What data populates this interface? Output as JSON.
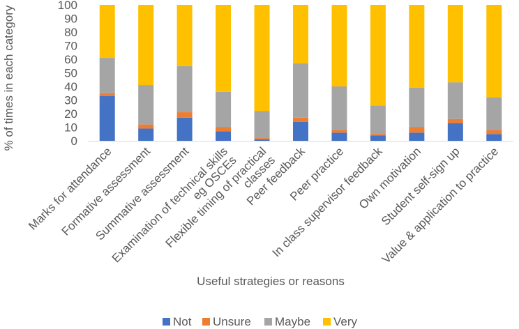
{
  "chart_data": {
    "type": "bar",
    "stacked": true,
    "title": "",
    "xlabel": "Useful strategies or reasons",
    "ylabel": "% of times in each category",
    "ylim": [
      0,
      100
    ],
    "yticks": [
      0,
      10,
      20,
      30,
      40,
      50,
      60,
      70,
      80,
      90,
      100
    ],
    "grid": false,
    "legend_position": "bottom",
    "categories": [
      [
        "Marks for attendance"
      ],
      [
        "Formative assessment"
      ],
      [
        "Summative assessment"
      ],
      [
        "Examination of technical skills",
        "eg OSCEs"
      ],
      [
        "Flexible timing of practical",
        "classes"
      ],
      [
        "Peer feedback"
      ],
      [
        "Peer practice"
      ],
      [
        "In class supervisor feedback"
      ],
      [
        "Own motivation"
      ],
      [
        "Student self-sign up"
      ],
      [
        "Value & application to practice"
      ]
    ],
    "series": [
      {
        "name": "Not",
        "color": "#4472C4",
        "values": [
          33,
          9,
          17,
          7,
          1,
          14,
          6,
          4,
          6,
          13,
          5
        ]
      },
      {
        "name": "Unsure",
        "color": "#ED7D31",
        "values": [
          2,
          3,
          4,
          3,
          1,
          3,
          2,
          1,
          4,
          3,
          3
        ]
      },
      {
        "name": "Maybe",
        "color": "#A5A5A5",
        "values": [
          26,
          29,
          34,
          26,
          20,
          40,
          32,
          21,
          29,
          27,
          24
        ]
      },
      {
        "name": "Very",
        "color": "#FFC000",
        "values": [
          39,
          59,
          45,
          64,
          78,
          43,
          60,
          74,
          61,
          57,
          68
        ]
      }
    ]
  }
}
